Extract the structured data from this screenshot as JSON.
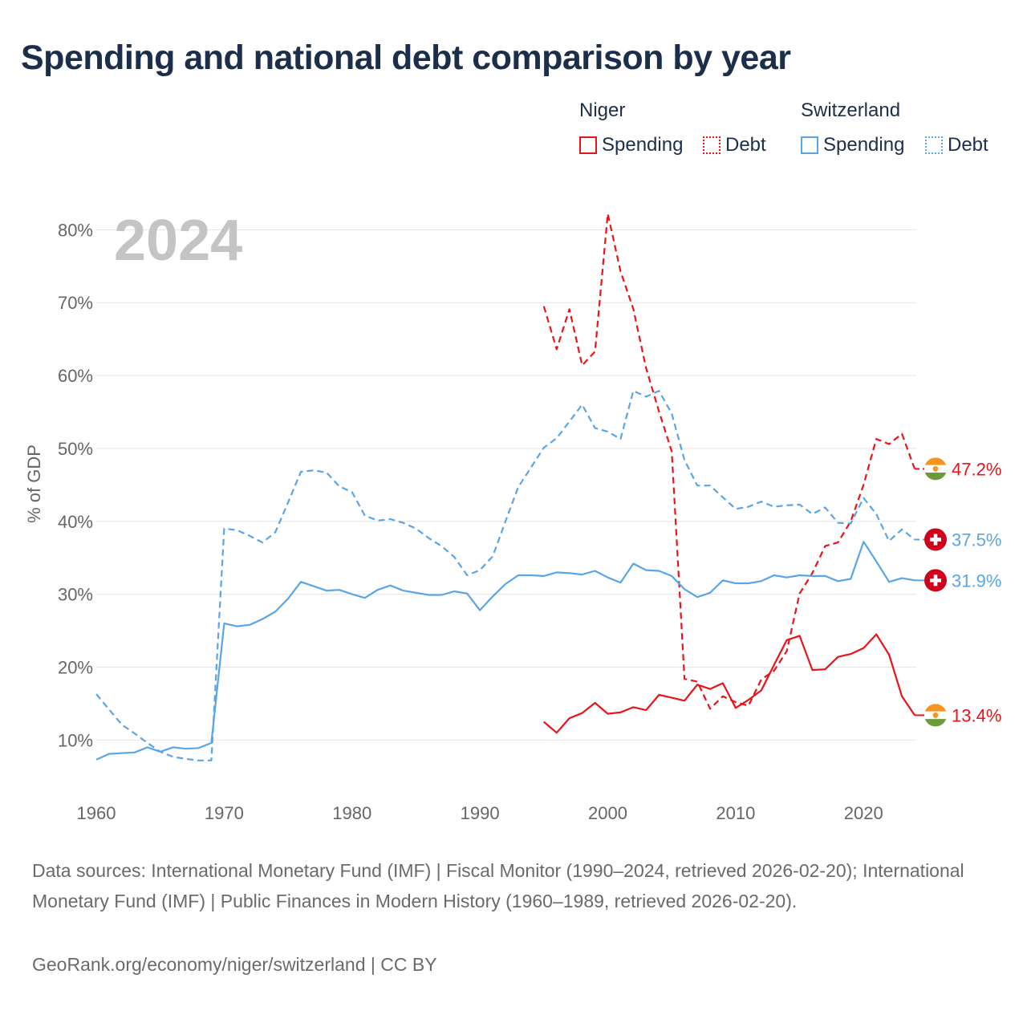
{
  "title": "Spending and national debt comparison by year",
  "legend": {
    "groups": [
      {
        "name": "Niger",
        "items": [
          {
            "label": "Spending",
            "color": "#e8141a",
            "style": "solid"
          },
          {
            "label": "Debt",
            "color": "#e8141a",
            "style": "dotted"
          }
        ]
      },
      {
        "name": "Switzerland",
        "items": [
          {
            "label": "Spending",
            "color": "#5aa5e6",
            "style": "solid"
          },
          {
            "label": "Debt",
            "color": "#5aa5e6",
            "style": "dotted"
          }
        ]
      }
    ]
  },
  "chart_data": {
    "type": "line",
    "year_watermark": "2024",
    "ylabel": "% of GDP",
    "xlim": [
      1960,
      2024
    ],
    "ylim": [
      2,
      84
    ],
    "x_ticks": [
      1960,
      1970,
      1980,
      1990,
      2000,
      2010,
      2020
    ],
    "y_ticks": [
      10,
      20,
      30,
      40,
      50,
      60,
      70,
      80
    ],
    "y_tick_suffix": "%",
    "series": [
      {
        "name": "Niger Spending",
        "country": "Niger",
        "kind": "spending",
        "color": "#e8141a",
        "dash": "solid",
        "end_label": "13.4%",
        "flag": "niger",
        "x": [
          1995,
          1996,
          1997,
          1998,
          1999,
          2000,
          2001,
          2002,
          2003,
          2004,
          2005,
          2006,
          2007,
          2008,
          2009,
          2010,
          2011,
          2012,
          2013,
          2014,
          2015,
          2016,
          2017,
          2018,
          2019,
          2020,
          2021,
          2022,
          2023,
          2024
        ],
        "values": [
          12.5,
          11.0,
          13.0,
          13.7,
          15.1,
          13.6,
          13.8,
          14.5,
          14.1,
          16.2,
          15.8,
          15.4,
          17.6,
          17.0,
          17.8,
          14.4,
          15.5,
          16.8,
          20.3,
          23.7,
          24.3,
          19.6,
          19.7,
          21.4,
          21.8,
          22.6,
          24.5,
          21.7,
          16.0,
          13.4
        ]
      },
      {
        "name": "Niger Debt",
        "country": "Niger",
        "kind": "debt",
        "color": "#e8141a",
        "dash": "dashed",
        "end_label": "47.2%",
        "flag": "niger",
        "x": [
          1995,
          1996,
          1997,
          1998,
          1999,
          2000,
          2001,
          2002,
          2003,
          2004,
          2005,
          2006,
          2007,
          2008,
          2009,
          2010,
          2011,
          2012,
          2013,
          2014,
          2015,
          2016,
          2017,
          2018,
          2019,
          2020,
          2021,
          2022,
          2023,
          2024
        ],
        "values": [
          69.5,
          63.6,
          69.1,
          61.4,
          63.3,
          82.2,
          74.3,
          69.1,
          61.0,
          55.1,
          49.6,
          18.4,
          18.0,
          14.3,
          16.0,
          15.2,
          14.7,
          18.3,
          19.5,
          22.2,
          30.1,
          32.9,
          36.6,
          37.1,
          40.0,
          45.0,
          51.3,
          50.6,
          52.0,
          47.2
        ]
      },
      {
        "name": "Switzerland Spending",
        "country": "Switzerland",
        "kind": "spending",
        "color": "#5aa5e6",
        "dash": "solid",
        "end_label": "31.9%",
        "flag": "switzerland",
        "x": [
          1960,
          1961,
          1962,
          1963,
          1964,
          1965,
          1966,
          1967,
          1968,
          1969,
          1970,
          1971,
          1972,
          1973,
          1974,
          1975,
          1976,
          1977,
          1978,
          1979,
          1980,
          1981,
          1982,
          1983,
          1984,
          1985,
          1986,
          1987,
          1988,
          1989,
          1990,
          1991,
          1992,
          1993,
          1994,
          1995,
          1996,
          1997,
          1998,
          1999,
          2000,
          2001,
          2002,
          2003,
          2004,
          2005,
          2006,
          2007,
          2008,
          2009,
          2010,
          2011,
          2012,
          2013,
          2014,
          2015,
          2016,
          2017,
          2018,
          2019,
          2020,
          2021,
          2022,
          2023,
          2024
        ],
        "values": [
          7.3,
          8.1,
          8.2,
          8.3,
          9.0,
          8.4,
          9.0,
          8.8,
          8.9,
          9.6,
          26.0,
          25.6,
          25.8,
          26.6,
          27.6,
          29.4,
          31.7,
          31.1,
          30.5,
          30.6,
          30.0,
          29.5,
          30.6,
          31.2,
          30.5,
          30.2,
          29.9,
          29.9,
          30.4,
          30.1,
          27.8,
          29.7,
          31.4,
          32.6,
          32.6,
          32.5,
          33.0,
          32.9,
          32.7,
          33.2,
          32.3,
          31.6,
          34.2,
          33.3,
          33.2,
          32.5,
          30.7,
          29.6,
          30.2,
          31.9,
          31.5,
          31.5,
          31.8,
          32.6,
          32.3,
          32.6,
          32.5,
          32.5,
          31.8,
          32.1,
          37.2,
          34.5,
          31.7,
          32.2,
          31.9
        ]
      },
      {
        "name": "Switzerland Debt",
        "country": "Switzerland",
        "kind": "debt",
        "color": "#5aa5e6",
        "dash": "dashed",
        "end_label": "37.5%",
        "flag": "switzerland",
        "x": [
          1960,
          1961,
          1962,
          1963,
          1964,
          1965,
          1966,
          1967,
          1968,
          1969,
          1970,
          1971,
          1972,
          1973,
          1974,
          1975,
          1976,
          1977,
          1978,
          1979,
          1980,
          1981,
          1982,
          1983,
          1984,
          1985,
          1986,
          1987,
          1988,
          1989,
          1990,
          1991,
          1992,
          1993,
          1994,
          1995,
          1996,
          1997,
          1998,
          1999,
          2000,
          2001,
          2002,
          2003,
          2004,
          2005,
          2006,
          2007,
          2008,
          2009,
          2010,
          2011,
          2012,
          2013,
          2014,
          2015,
          2016,
          2017,
          2018,
          2019,
          2020,
          2021,
          2022,
          2023,
          2024
        ],
        "values": [
          16.3,
          14.2,
          12.1,
          10.9,
          9.6,
          8.4,
          7.7,
          7.4,
          7.2,
          7.2,
          39.0,
          38.8,
          38.0,
          37.1,
          38.5,
          42.6,
          46.8,
          47.0,
          46.7,
          44.8,
          44.0,
          40.8,
          40.1,
          40.3,
          39.8,
          39.0,
          37.7,
          36.6,
          35.1,
          32.6,
          33.3,
          35.2,
          40.0,
          44.7,
          47.4,
          50.1,
          51.4,
          53.7,
          56.0,
          52.8,
          52.3,
          51.3,
          57.9,
          57.1,
          57.9,
          54.8,
          48.4,
          44.9,
          44.9,
          43.3,
          41.7,
          42.0,
          42.7,
          42.0,
          42.2,
          42.3,
          41.0,
          41.9,
          39.8,
          39.7,
          43.2,
          41.0,
          37.3,
          38.9,
          37.5
        ]
      }
    ]
  },
  "footer": {
    "source": "Data sources: International Monetary Fund (IMF) | Fiscal Monitor (1990–2024, retrieved 2026-02-20); International Monetary Fund (IMF) | Public Finances in Modern History (1960–1989, retrieved 2026-02-20).",
    "credit": "GeoRank.org/economy/niger/switzerland | CC BY"
  }
}
